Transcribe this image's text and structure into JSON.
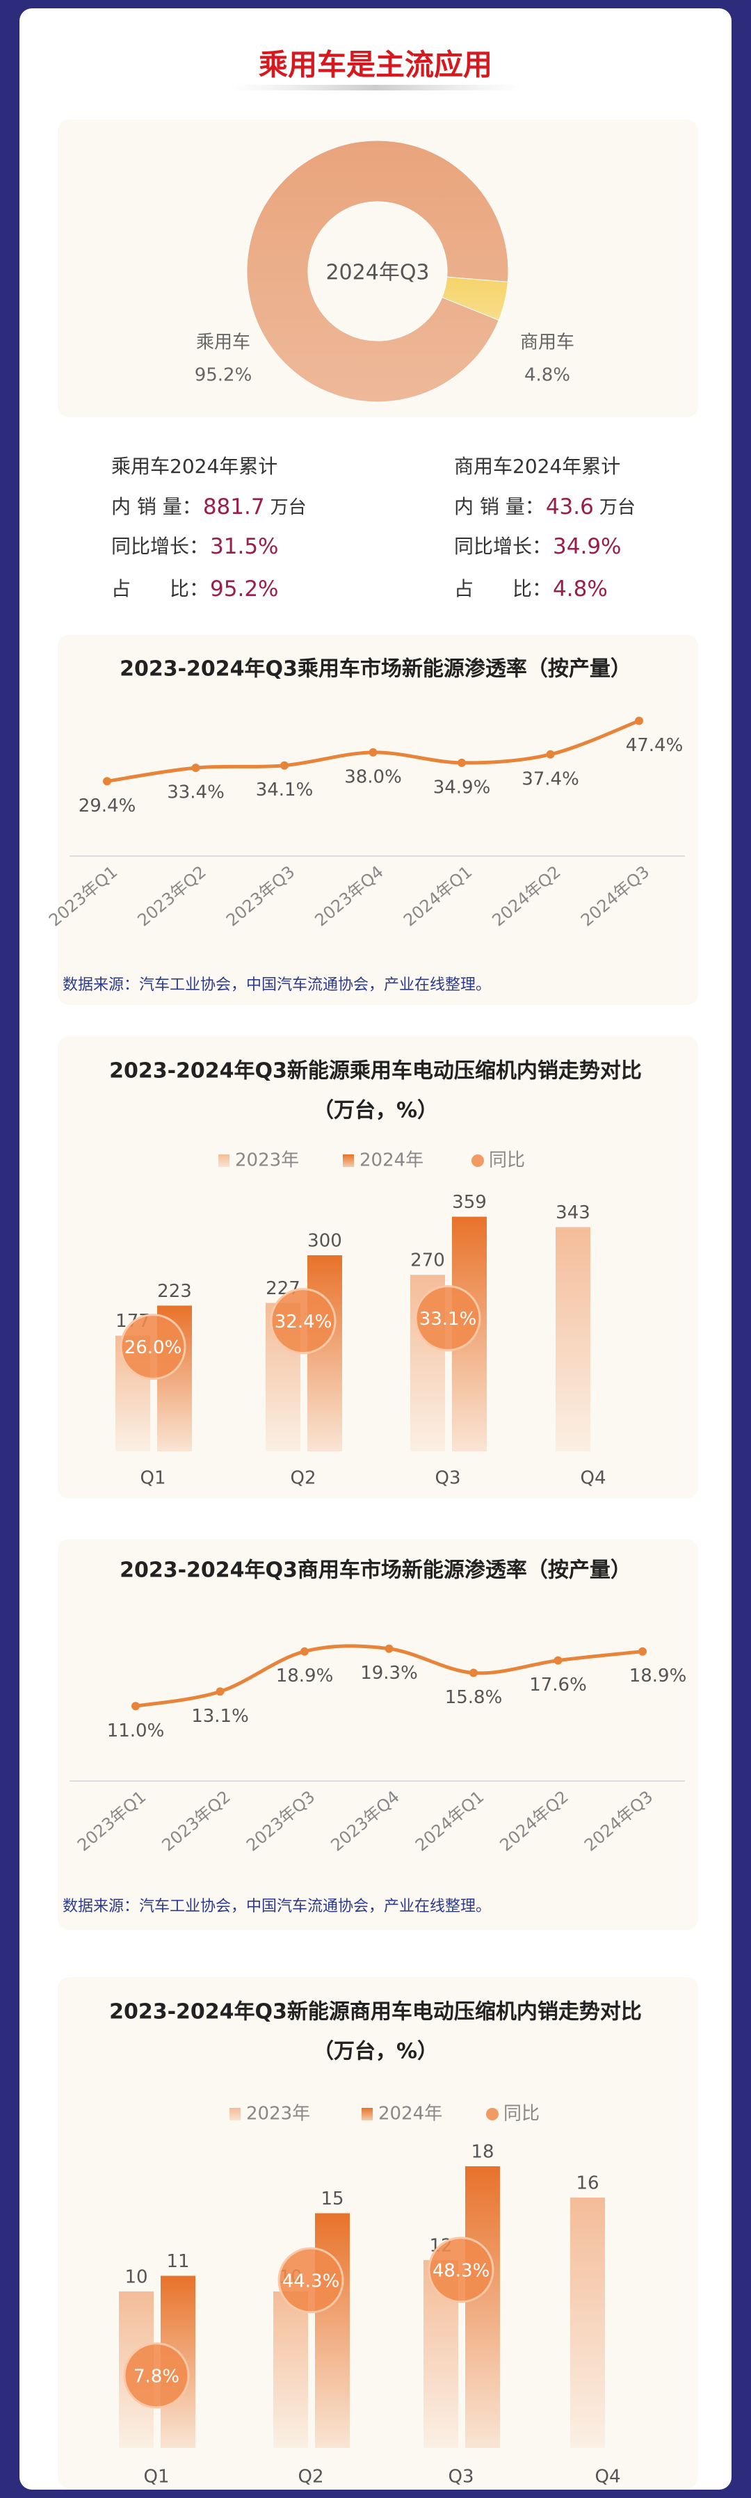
{
  "header": {
    "title": "乘用车是主流应用"
  },
  "stats": [
    {
      "title": "乘用车2024年累计",
      "rows": [
        {
          "label": "内 销 量：",
          "value": "881.7",
          "unit": "万台"
        },
        {
          "label": "同比增长：",
          "value": "31.5%"
        },
        {
          "label": "占　　比：",
          "value": "95.2%"
        }
      ]
    },
    {
      "title": "商用车2024年累计",
      "rows": [
        {
          "label": "内 销 量：",
          "value": "43.6",
          "unit": "万台"
        },
        {
          "label": "同比增长：",
          "value": "34.9%"
        },
        {
          "label": "占　　比：",
          "value": "4.8%"
        }
      ]
    }
  ],
  "chart_data": [
    {
      "type": "pie",
      "center_label": "2024年Q3",
      "categories": [
        "乘用车",
        "商用车"
      ],
      "values": [
        95.2,
        4.8
      ],
      "value_labels": [
        "95.2%",
        "4.8%"
      ],
      "colors": [
        "#e9a47c",
        "#f6d46a"
      ]
    },
    {
      "type": "line",
      "title": "2023-2024年Q3乘用车市场新能源渗透率（按产量）",
      "categories": [
        "2023年Q1",
        "2023年Q2",
        "2023年Q3",
        "2023年Q4",
        "2024年Q1",
        "2024年Q2",
        "2024年Q3"
      ],
      "values": [
        29.4,
        33.4,
        34.1,
        38.0,
        34.9,
        37.4,
        47.4
      ],
      "value_labels": [
        "29.4%",
        "33.4%",
        "34.1%",
        "38.0%",
        "34.9%",
        "37.4%",
        "47.4%"
      ],
      "color": "#e8843a",
      "ylim": [
        10,
        50
      ],
      "source": "数据来源：汽车工业协会，中国汽车流通协会，产业在线整理。"
    },
    {
      "type": "bar",
      "title": "2023-2024年Q3新能源乘用车电动压缩机内销走势对比",
      "subtitle": "（万台，%）",
      "categories": [
        "Q1",
        "Q2",
        "Q3",
        "Q4"
      ],
      "series": [
        {
          "name": "2023年",
          "color": "#f4bc98",
          "values": [
            177,
            227,
            270,
            343
          ]
        },
        {
          "name": "2024年",
          "color": "#e8722a",
          "values": [
            223,
            300,
            359,
            null
          ]
        },
        {
          "name": "同比",
          "color": "#f08a4b",
          "axis": "y2",
          "values": [
            26.0,
            32.4,
            33.1,
            null
          ],
          "value_labels": [
            "26.0%",
            "32.4%",
            "33.1%",
            null
          ]
        }
      ],
      "ylim": [
        0,
        400
      ],
      "y2lim": [
        0,
        65
      ]
    },
    {
      "type": "line",
      "title": "2023-2024年Q3商用车市场新能源渗透率（按产量）",
      "categories": [
        "2023年Q1",
        "2023年Q2",
        "2023年Q3",
        "2023年Q4",
        "2024年Q1",
        "2024年Q2",
        "2024年Q3"
      ],
      "values": [
        11.0,
        13.1,
        18.9,
        19.3,
        15.8,
        17.6,
        18.9
      ],
      "value_labels": [
        "11.0%",
        "13.1%",
        "18.9%",
        "19.3%",
        "15.8%",
        "17.6%",
        "18.9%"
      ],
      "color": "#e8843a",
      "ylim": [
        5,
        25
      ],
      "source": "数据来源：汽车工业协会，中国汽车流通协会，产业在线整理。"
    },
    {
      "type": "bar",
      "title": "2023-2024年Q3新能源商用车电动压缩机内销走势对比",
      "subtitle": "（万台，%）",
      "categories": [
        "Q1",
        "Q2",
        "Q3",
        "Q4"
      ],
      "series": [
        {
          "name": "2023年",
          "color": "#f4bc98",
          "values": [
            10,
            10,
            12,
            16
          ]
        },
        {
          "name": "2024年",
          "color": "#e8722a",
          "values": [
            11,
            15,
            18,
            null
          ]
        },
        {
          "name": "同比",
          "color": "#f08a4b",
          "axis": "y2",
          "values": [
            7.8,
            44.3,
            48.3,
            null
          ],
          "value_labels": [
            "7.8%",
            "44.3%",
            "48.3%",
            null
          ]
        }
      ],
      "ylim": [
        0,
        20
      ],
      "y2lim": [
        -20,
        100
      ]
    }
  ]
}
